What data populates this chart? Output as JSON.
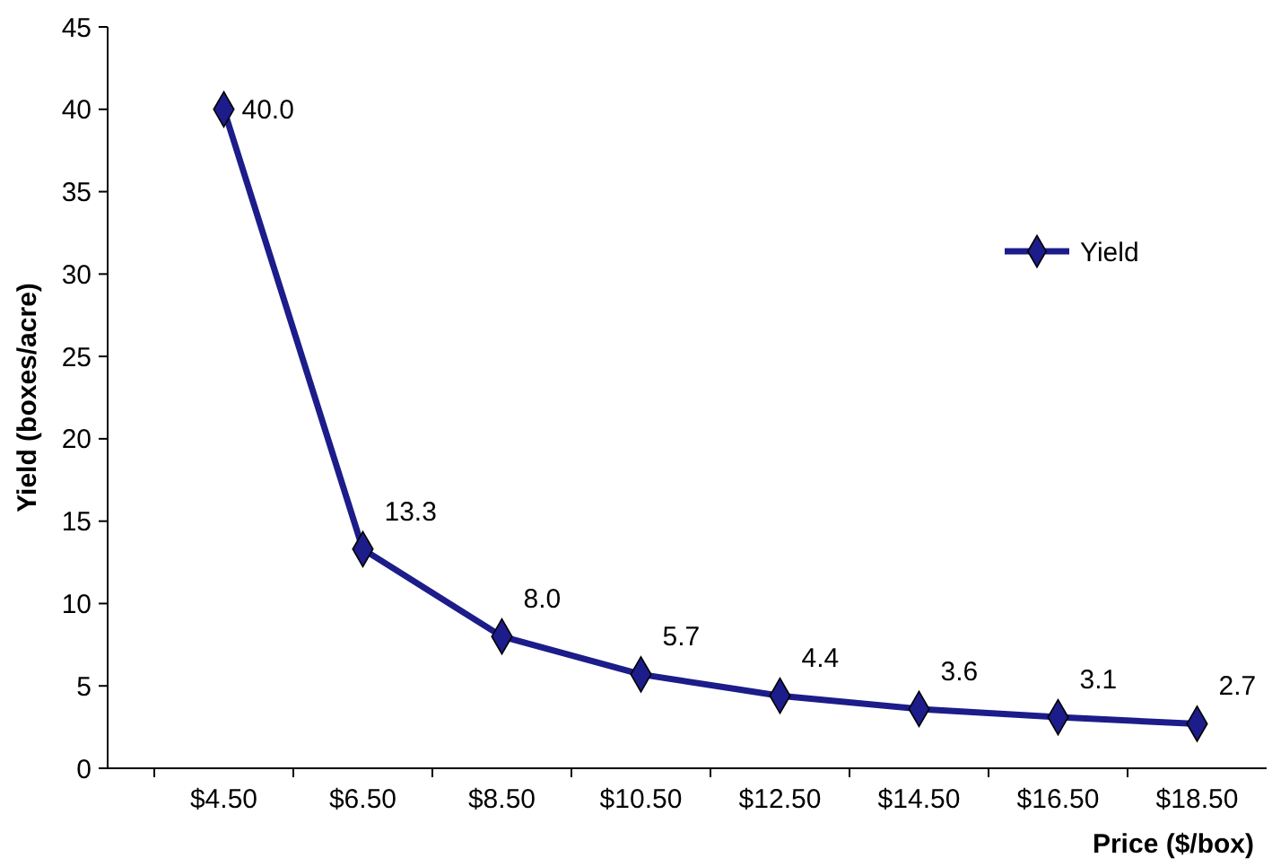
{
  "chart_data": {
    "type": "line",
    "xlabel": "Price ($/box)",
    "ylabel": "Yield (boxes/acre)",
    "categories": [
      "$4.50",
      "$6.50",
      "$8.50",
      "$10.50",
      "$12.50",
      "$14.50",
      "$16.50",
      "$18.50"
    ],
    "series": [
      {
        "name": "Yield",
        "color": "#1c1c8a",
        "values": [
          40.0,
          13.3,
          8.0,
          5.7,
          4.4,
          3.6,
          3.1,
          2.7
        ],
        "value_labels": [
          "40.0",
          "13.3",
          "8.0",
          "5.7",
          "4.4",
          "3.6",
          "3.1",
          "2.7"
        ]
      }
    ],
    "ylim": [
      0,
      45
    ],
    "yticks": [
      0,
      5,
      10,
      15,
      20,
      25,
      30,
      35,
      40,
      45
    ],
    "grid": false,
    "legend": "top right",
    "marker": "diamond",
    "line_style": "solid"
  }
}
